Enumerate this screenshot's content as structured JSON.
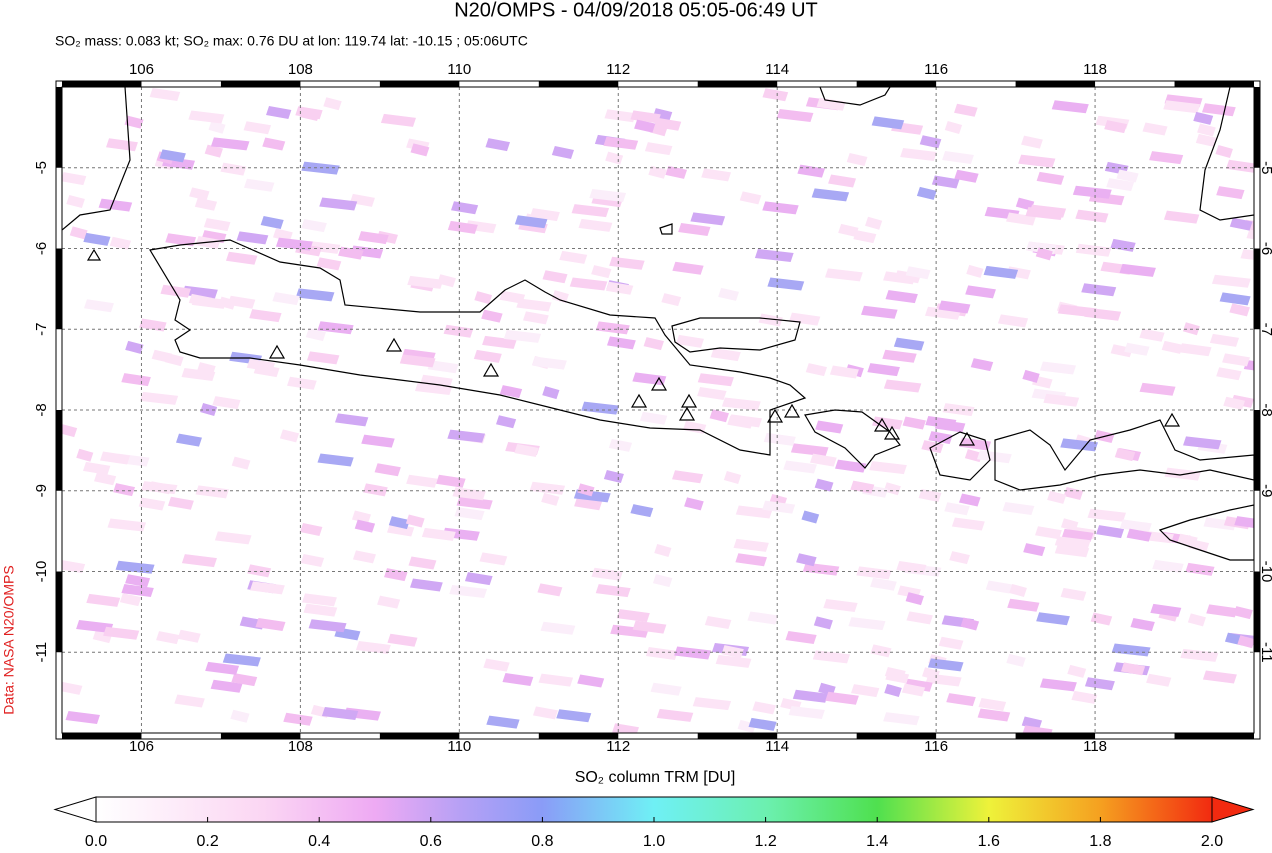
{
  "map": {
    "title": "N20/OMPS - 04/09/2018 05:05-06:49 UT",
    "subtitle": "SO₂ mass: 0.083 kt; SO₂ max: 0.76 DU at lon: 119.74 lat: -10.15 ; 05:06UTC",
    "credit": "Data: NASA N20/OMPS",
    "xlim": [
      105,
      120
    ],
    "ylim": [
      -4,
      -12
    ],
    "xticks": [
      106,
      108,
      110,
      112,
      114,
      116,
      118
    ],
    "yticks": [
      -5,
      -6,
      -7,
      -8,
      -9,
      -10,
      -11
    ],
    "grid": true,
    "colorbar": {
      "title": "SO₂ column TRM [DU]",
      "lim": [
        0,
        2
      ],
      "ticks": [
        {
          "value": 0,
          "label": "0.0"
        },
        {
          "value": 0.2,
          "label": "0.2"
        },
        {
          "value": 0.4,
          "label": "0.4"
        },
        {
          "value": 0.6,
          "label": "0.6"
        },
        {
          "value": 0.8,
          "label": "0.8"
        },
        {
          "value": 1,
          "label": "1.0"
        },
        {
          "value": 1.2,
          "label": "1.2"
        },
        {
          "value": 1.4,
          "label": "1.4"
        },
        {
          "value": 1.6,
          "label": "1.6"
        },
        {
          "value": 1.8,
          "label": "1.8"
        },
        {
          "value": 2,
          "label": "2.0"
        }
      ]
    }
  }
}
